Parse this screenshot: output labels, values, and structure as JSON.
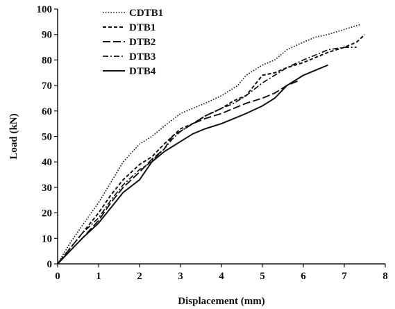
{
  "chart_data": {
    "type": "line",
    "xlabel": "Displacement (mm)",
    "ylabel": "Load (kN)",
    "xlim": [
      0,
      8
    ],
    "ylim": [
      0,
      100
    ],
    "x_ticks": [
      "0",
      "1",
      "2",
      "3",
      "4",
      "5",
      "6",
      "7",
      "8"
    ],
    "y_ticks": [
      "0",
      "10",
      "20",
      "30",
      "40",
      "50",
      "60",
      "70",
      "80",
      "90",
      "100"
    ],
    "grid": false,
    "legend_position": "top-left",
    "series": [
      {
        "name": "CDTB1",
        "style": "dotted",
        "x": [
          0,
          0.3,
          0.6,
          1.0,
          1.3,
          1.6,
          2.0,
          2.3,
          2.6,
          3.0,
          3.3,
          3.6,
          4.0,
          4.2,
          4.4,
          4.6,
          4.8,
          5.0,
          5.3,
          5.6,
          6.0,
          6.3,
          6.6,
          7.0,
          7.4
        ],
        "y": [
          0,
          8,
          15,
          24,
          32,
          40,
          47,
          50,
          54,
          59,
          61,
          63,
          66,
          68,
          70,
          74,
          76,
          78,
          80,
          84,
          87,
          89,
          90,
          92,
          94
        ]
      },
      {
        "name": "DTB1",
        "style": "dashed",
        "x": [
          0,
          0.3,
          0.6,
          1.0,
          1.3,
          1.6,
          2.0,
          2.3,
          2.6,
          3.0,
          3.3,
          3.6,
          4.0,
          4.3,
          4.6,
          4.8,
          5.0,
          5.3,
          5.6,
          6.0,
          6.3,
          6.6,
          7.0,
          7.3,
          7.5
        ],
        "y": [
          0,
          6,
          12,
          20,
          27,
          33,
          39,
          42,
          47,
          53,
          55,
          58,
          61,
          64,
          66,
          70,
          74,
          75,
          77,
          79,
          81,
          83,
          85,
          87,
          90
        ]
      },
      {
        "name": "DTB2",
        "style": "long-dash",
        "x": [
          0,
          0.3,
          0.6,
          1.0,
          1.3,
          1.6,
          2.0,
          2.3,
          2.6,
          2.8,
          3.0,
          3.3,
          3.6,
          4.0,
          4.3,
          4.6,
          5.0,
          5.3,
          5.6,
          5.9
        ],
        "y": [
          0,
          5,
          10,
          17,
          24,
          30,
          36,
          41,
          45,
          50,
          52,
          55,
          57,
          59,
          61,
          63,
          65,
          67,
          70,
          72
        ]
      },
      {
        "name": "DTB3",
        "style": "dash-dot",
        "x": [
          0,
          0.3,
          0.6,
          1.0,
          1.3,
          1.6,
          2.0,
          2.2,
          2.4,
          2.6,
          2.8,
          3.0,
          3.3,
          3.6,
          4.0,
          4.3,
          4.6,
          5.0,
          5.3,
          5.6,
          6.0,
          6.3,
          6.6,
          7.0,
          7.3
        ],
        "y": [
          0,
          6,
          12,
          18,
          25,
          31,
          37,
          39,
          42,
          45,
          49,
          52,
          55,
          58,
          61,
          63,
          66,
          71,
          74,
          77,
          80,
          82,
          84,
          85,
          85
        ]
      },
      {
        "name": "DTB4",
        "style": "solid",
        "x": [
          0,
          0.3,
          0.6,
          1.0,
          1.3,
          1.6,
          2.0,
          2.3,
          2.6,
          3.0,
          3.3,
          3.6,
          4.0,
          4.3,
          4.6,
          5.0,
          5.3,
          5.6,
          6.0,
          6.3,
          6.6
        ],
        "y": [
          0,
          5,
          10,
          16,
          22,
          28,
          33,
          40,
          44,
          48,
          51,
          53,
          55,
          57,
          59,
          62,
          65,
          70,
          74,
          76,
          78
        ]
      }
    ]
  }
}
